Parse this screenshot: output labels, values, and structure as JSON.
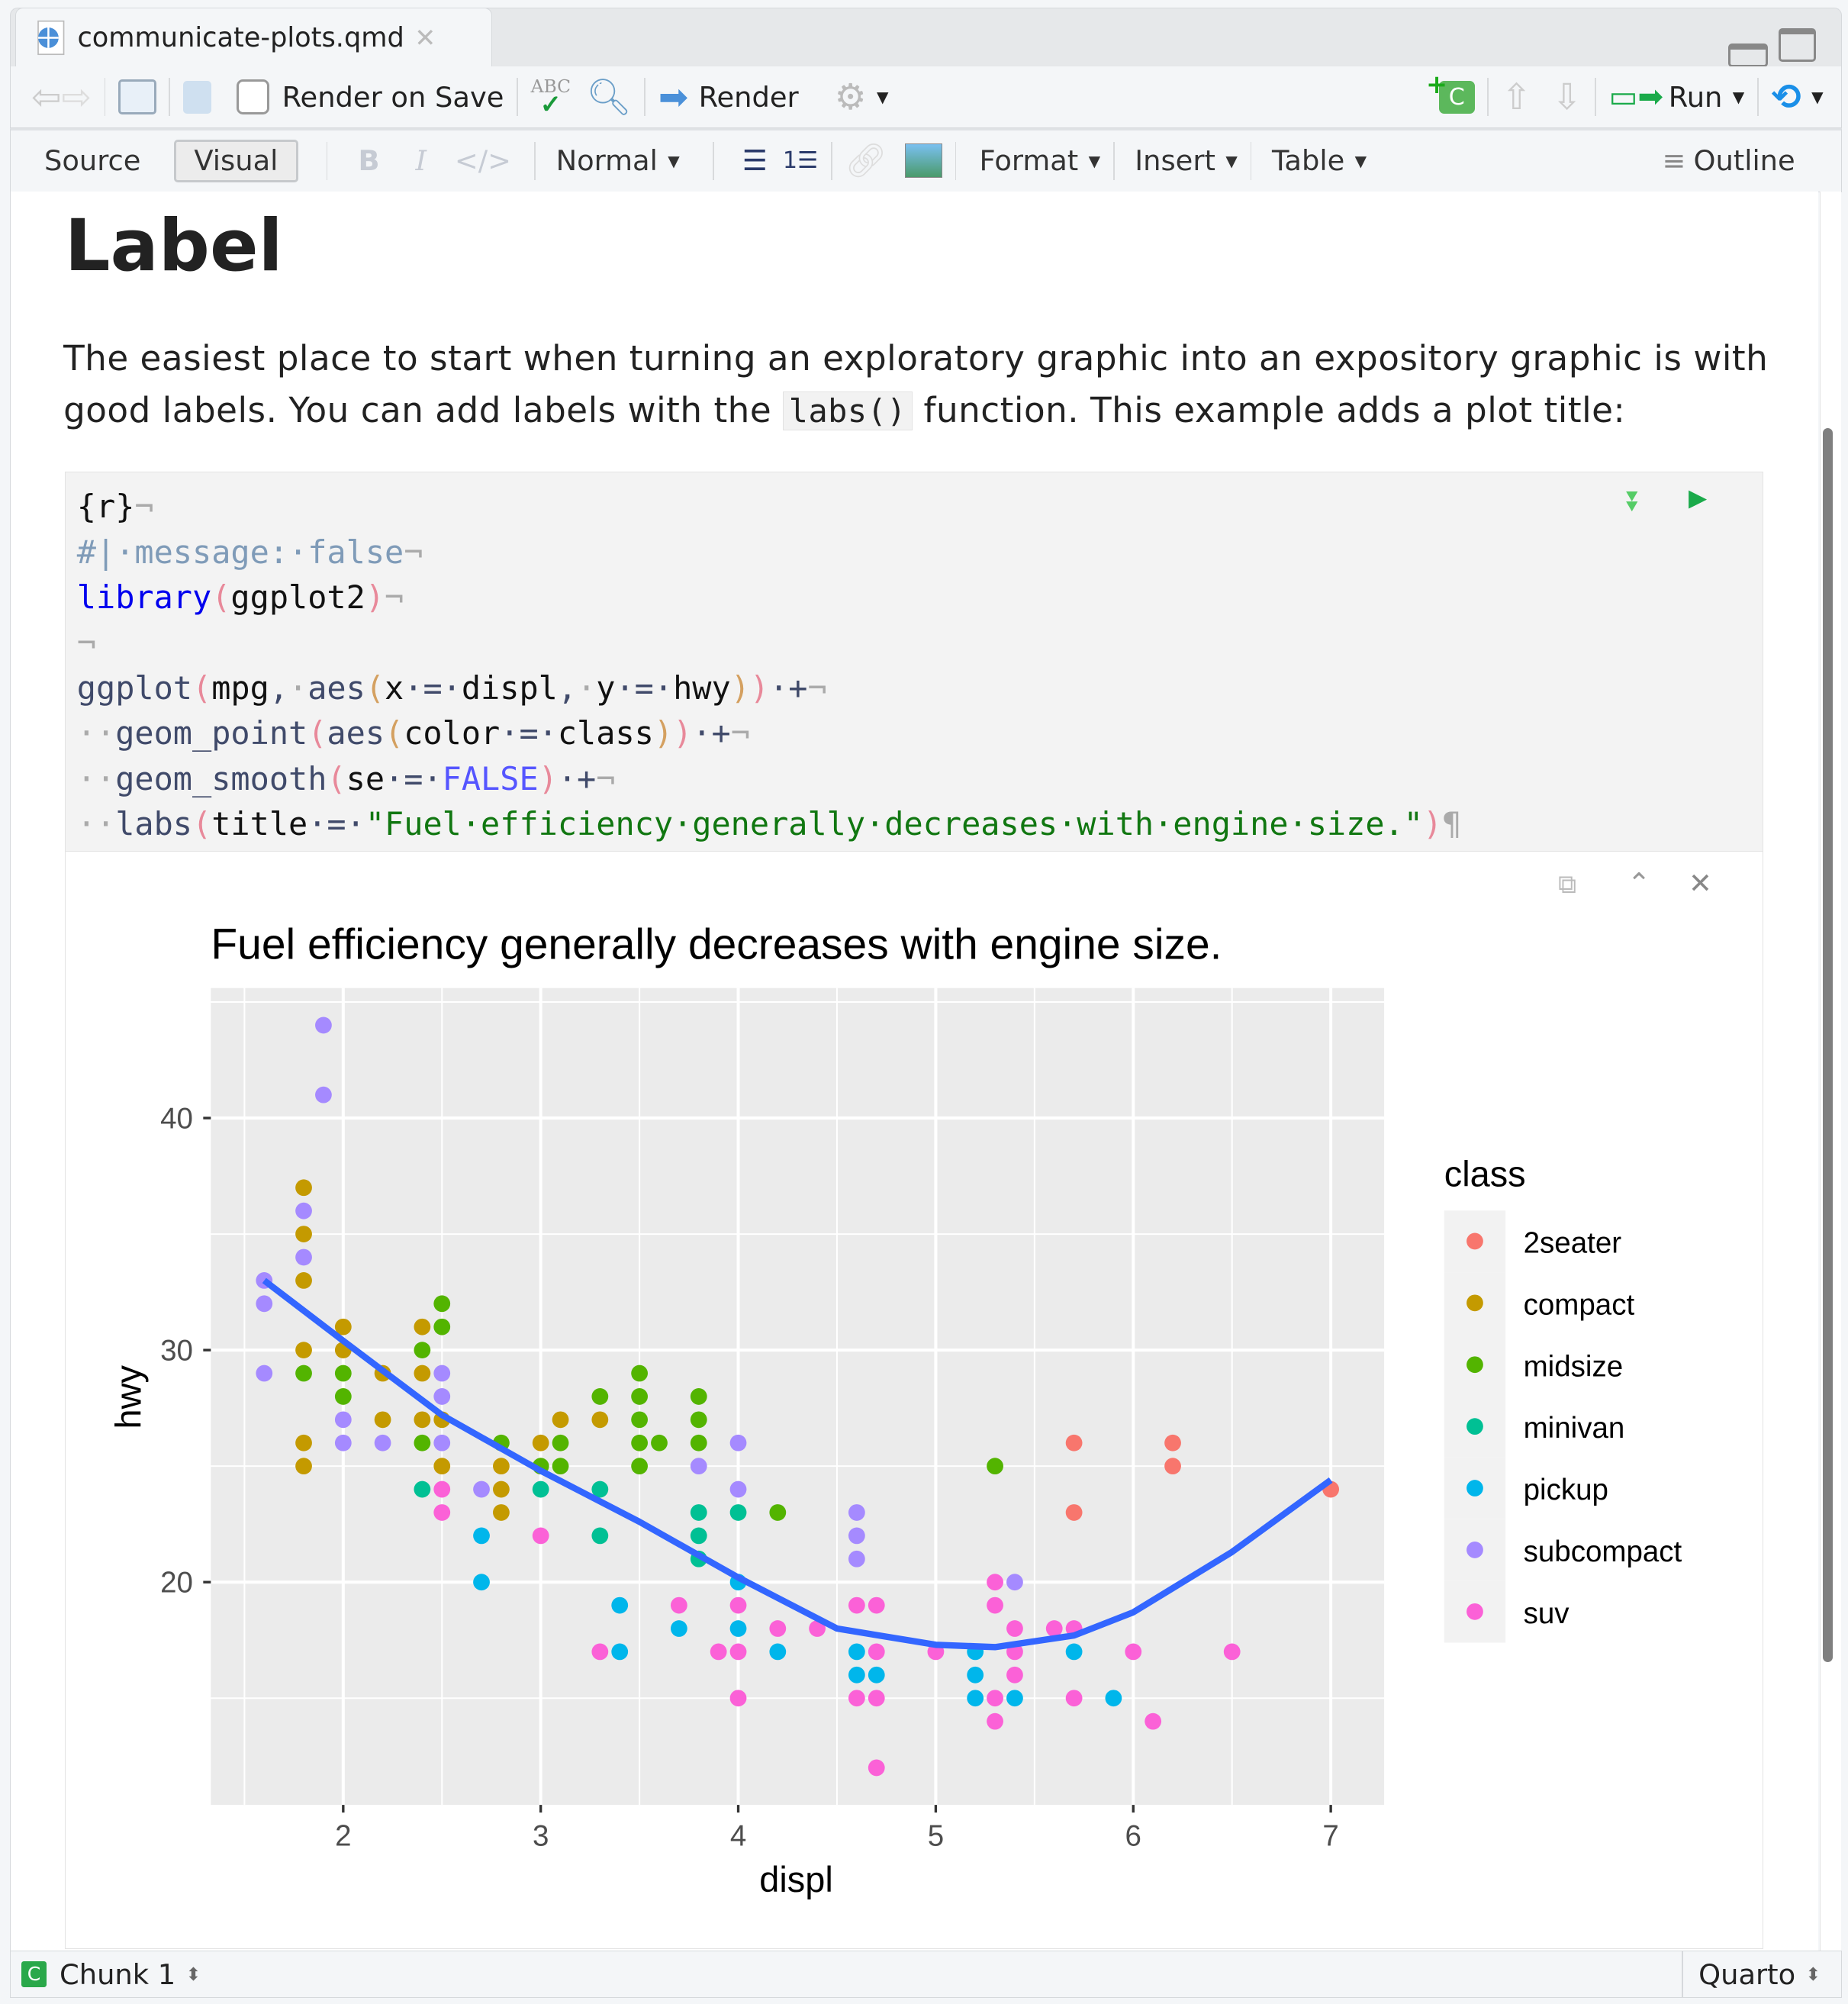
{
  "tab": {
    "filename": "communicate-plots.qmd",
    "icon": "quarto-file-icon"
  },
  "toolbar": {
    "render_on_save": "Render on Save",
    "render_on_save_checked": false,
    "render": "Render",
    "run": "Run"
  },
  "format_bar": {
    "source": "Source",
    "visual": "Visual",
    "active_mode": "Visual",
    "style": "Normal",
    "format": "Format",
    "insert": "Insert",
    "table": "Table",
    "outline": "Outline"
  },
  "document": {
    "heading": "Label",
    "paragraph_before": "The easiest place to start when turning an exploratory graphic into an expository graphic is with good labels. You can add labels with the ",
    "inline_code": "labs()",
    "paragraph_after": " function. This example adds a plot title:",
    "code_lines": [
      [
        [
          "{r}",
          "n"
        ],
        [
          "¬",
          "w"
        ]
      ],
      [
        [
          "#|·message:·false",
          "c"
        ],
        [
          "¬",
          "w"
        ]
      ],
      [
        [
          "library",
          "k"
        ],
        [
          "(",
          "p1"
        ],
        [
          "ggplot2",
          "n"
        ],
        [
          ")",
          "p1"
        ],
        [
          "¬",
          "w"
        ]
      ],
      [
        [
          "¬",
          "w"
        ]
      ],
      [
        [
          "ggplot",
          "f"
        ],
        [
          "(",
          "p1"
        ],
        [
          "mpg",
          "n"
        ],
        [
          ",",
          "f"
        ],
        [
          "·",
          "w"
        ],
        [
          "aes",
          "f"
        ],
        [
          "(",
          "p2"
        ],
        [
          "x",
          "n"
        ],
        [
          "·=·",
          "f"
        ],
        [
          "displ",
          "n"
        ],
        [
          ",",
          "f"
        ],
        [
          "·",
          "w"
        ],
        [
          "y",
          "n"
        ],
        [
          "·=·",
          "f"
        ],
        [
          "hwy",
          "n"
        ],
        [
          ")",
          "p2"
        ],
        [
          ")",
          "p1"
        ],
        [
          "·+",
          "f"
        ],
        [
          "¬",
          "w"
        ]
      ],
      [
        [
          "··",
          "w"
        ],
        [
          "geom_point",
          "f"
        ],
        [
          "(",
          "p1"
        ],
        [
          "aes",
          "f"
        ],
        [
          "(",
          "p2"
        ],
        [
          "color",
          "n"
        ],
        [
          "·=·",
          "f"
        ],
        [
          "class",
          "n"
        ],
        [
          ")",
          "p2"
        ],
        [
          ")",
          "p1"
        ],
        [
          "·+",
          "f"
        ],
        [
          "¬",
          "w"
        ]
      ],
      [
        [
          "··",
          "w"
        ],
        [
          "geom_smooth",
          "f"
        ],
        [
          "(",
          "p1"
        ],
        [
          "se",
          "n"
        ],
        [
          "·=·",
          "f"
        ],
        [
          "FALSE",
          "b"
        ],
        [
          ")",
          "p1"
        ],
        [
          "·+",
          "f"
        ],
        [
          "¬",
          "w"
        ]
      ],
      [
        [
          "··",
          "w"
        ],
        [
          "labs",
          "f"
        ],
        [
          "(",
          "p1"
        ],
        [
          "title",
          "n"
        ],
        [
          "·=·",
          "f"
        ],
        [
          "\"Fuel·efficiency·generally·decreases·with·engine·size.\"",
          "s"
        ],
        [
          ")",
          "p1"
        ],
        [
          "¶",
          "w"
        ]
      ]
    ]
  },
  "status_bar": {
    "chunk": "Chunk 1",
    "doc_type": "Quarto"
  },
  "chart_data": {
    "type": "scatter",
    "title": "Fuel efficiency generally decreases with engine size.",
    "xlabel": "displ",
    "ylabel": "hwy",
    "xlim": [
      1.33,
      7.27
    ],
    "ylim": [
      10.4,
      45.6
    ],
    "x_ticks": [
      2,
      3,
      4,
      5,
      6,
      7
    ],
    "y_ticks": [
      20,
      30,
      40
    ],
    "grid": true,
    "legend_position": "right",
    "legend_title": "class",
    "series": [
      {
        "name": "2seater",
        "color": "#F8766D",
        "x": [
          5.7,
          5.7,
          6.2,
          6.2,
          7.0
        ],
        "y": [
          26,
          23,
          26,
          25,
          24
        ]
      },
      {
        "name": "compact",
        "color": "#C49A00",
        "x": [
          1.8,
          1.8,
          1.8,
          1.8,
          1.8,
          1.8,
          2.0,
          2.0,
          2.2,
          2.2,
          2.4,
          2.4,
          2.4,
          2.5,
          2.5,
          2.8,
          2.8,
          2.8,
          3.0,
          3.1,
          3.3
        ],
        "y": [
          37,
          35,
          33,
          30,
          26,
          25,
          31,
          30,
          29,
          27,
          31,
          29,
          27,
          27,
          25,
          25,
          24,
          23,
          26,
          27,
          27
        ]
      },
      {
        "name": "midsize",
        "color": "#53B400",
        "x": [
          1.8,
          2.0,
          2.0,
          2.4,
          2.4,
          2.5,
          2.5,
          2.8,
          3.0,
          3.1,
          3.1,
          3.3,
          3.5,
          3.5,
          3.5,
          3.5,
          3.5,
          3.6,
          3.8,
          3.8,
          3.8,
          4.2,
          5.3
        ],
        "y": [
          29,
          29,
          28,
          30,
          26,
          32,
          31,
          26,
          25,
          26,
          25,
          28,
          29,
          28,
          27,
          26,
          25,
          26,
          28,
          27,
          26,
          23,
          25
        ]
      },
      {
        "name": "minivan",
        "color": "#00C094",
        "x": [
          2.4,
          3.0,
          3.3,
          3.3,
          3.8,
          3.8,
          3.8,
          4.0
        ],
        "y": [
          24,
          24,
          24,
          22,
          23,
          22,
          21,
          23
        ]
      },
      {
        "name": "pickup",
        "color": "#00B6EB",
        "x": [
          2.7,
          2.7,
          3.4,
          3.4,
          3.7,
          4.0,
          4.0,
          4.2,
          4.6,
          4.6,
          4.7,
          5.2,
          5.2,
          5.2,
          5.4,
          5.7,
          5.9
        ],
        "y": [
          22,
          20,
          19,
          17,
          18,
          20,
          18,
          17,
          17,
          16,
          16,
          17,
          16,
          15,
          15,
          17,
          15
        ]
      },
      {
        "name": "subcompact",
        "color": "#A58AFF",
        "x": [
          1.6,
          1.6,
          1.6,
          1.8,
          1.8,
          1.9,
          1.9,
          2.0,
          2.0,
          2.2,
          2.5,
          2.5,
          2.5,
          2.7,
          3.8,
          4.0,
          4.0,
          4.6,
          4.6,
          4.6,
          5.4
        ],
        "y": [
          33,
          32,
          29,
          36,
          34,
          44,
          41,
          27,
          26,
          26,
          29,
          28,
          26,
          24,
          25,
          26,
          24,
          23,
          22,
          21,
          20
        ]
      },
      {
        "name": "suv",
        "color": "#FB61D7",
        "x": [
          2.5,
          2.5,
          3.0,
          3.3,
          3.7,
          3.9,
          4.0,
          4.0,
          4.0,
          4.2,
          4.4,
          4.6,
          4.6,
          4.7,
          4.7,
          4.7,
          4.7,
          5.0,
          5.3,
          5.3,
          5.3,
          5.3,
          5.4,
          5.4,
          5.4,
          5.6,
          5.7,
          5.7,
          6.0,
          6.1,
          6.5
        ],
        "y": [
          24,
          23,
          22,
          17,
          19,
          17,
          19,
          17,
          15,
          18,
          18,
          19,
          15,
          19,
          17,
          15,
          12,
          17,
          20,
          19,
          15,
          14,
          18,
          17,
          16,
          18,
          18,
          15,
          17,
          14,
          17
        ]
      }
    ],
    "smooth": {
      "color": "#3366FF",
      "x": [
        1.6,
        2.0,
        2.5,
        3.0,
        3.5,
        4.0,
        4.5,
        5.0,
        5.3,
        5.7,
        6.0,
        6.5,
        7.0
      ],
      "y": [
        33,
        30.4,
        27.2,
        24.8,
        22.6,
        20.2,
        18.0,
        17.3,
        17.2,
        17.7,
        18.7,
        21.3,
        24.4
      ]
    }
  }
}
